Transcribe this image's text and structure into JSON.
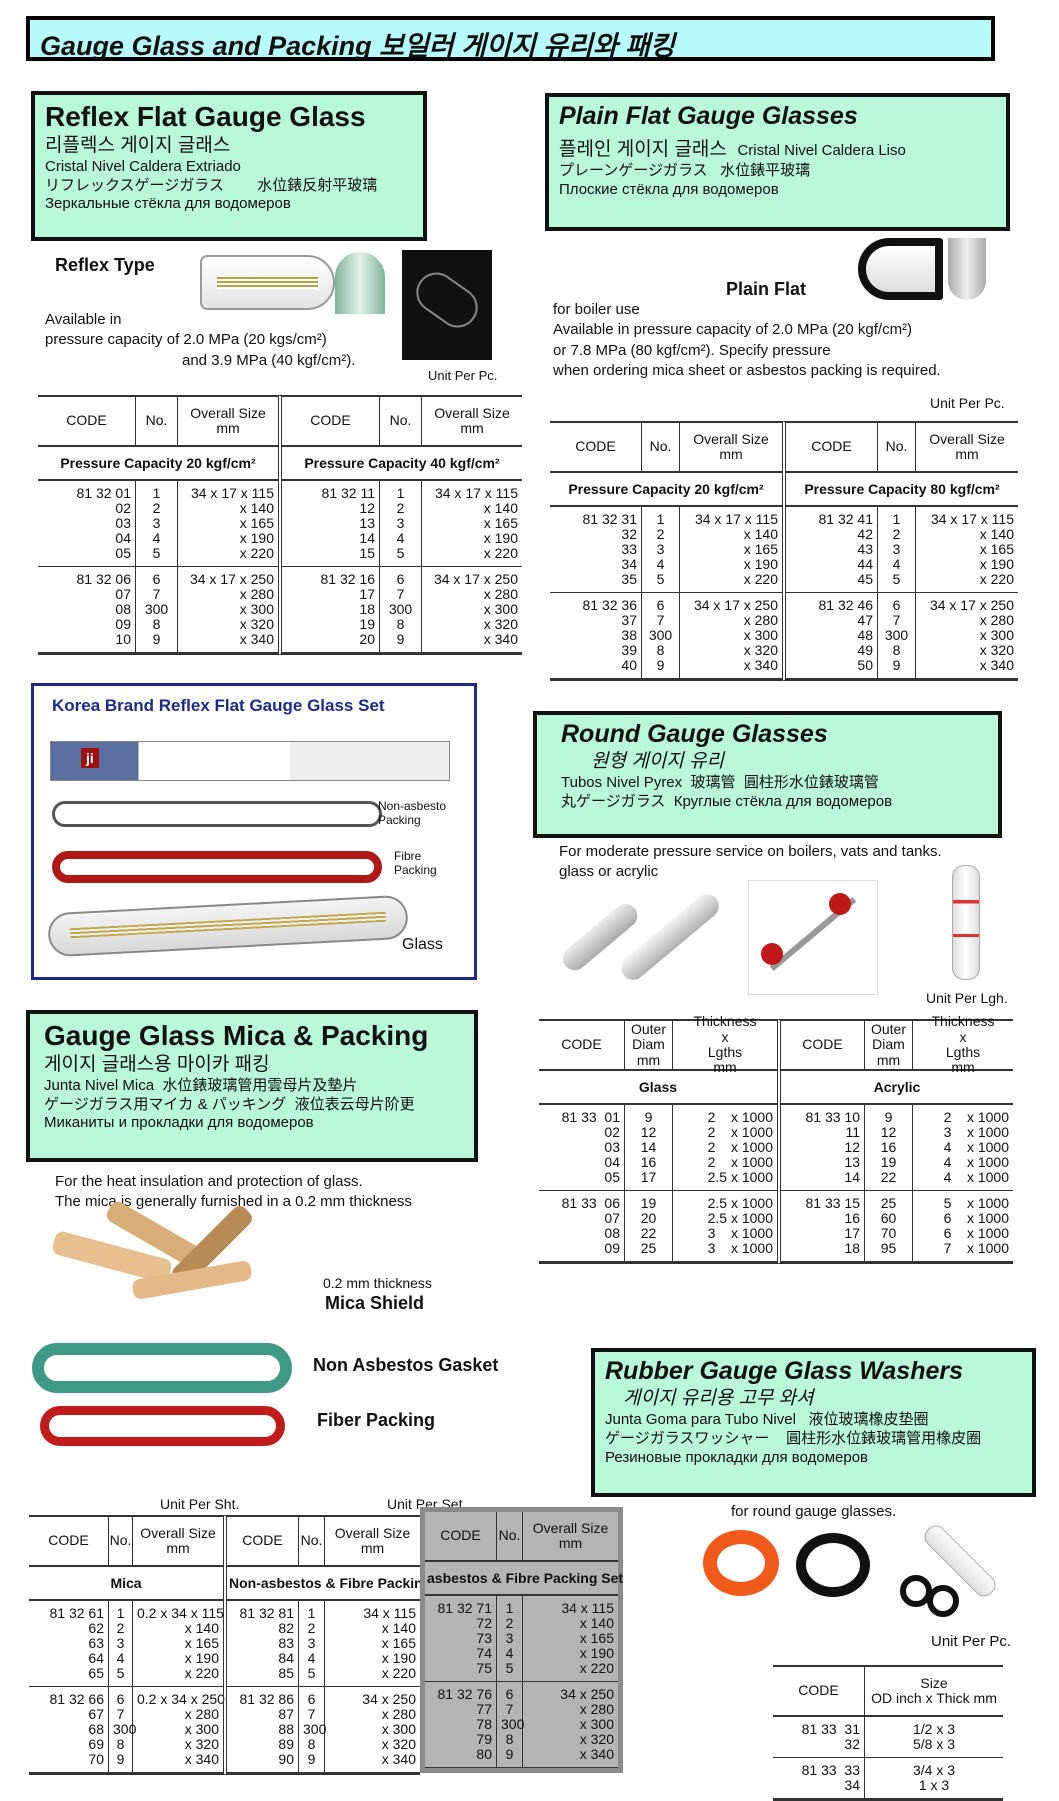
{
  "banner": {
    "title": "Gauge Glass and Packing  보일러 게이지 유리와 패킹"
  },
  "reflex": {
    "title": "Reflex Flat Gauge Glass",
    "korean": "리플렉스 게이지 글래스",
    "spanish": "Cristal Nivel Caldera Extriado",
    "japanese": "リフレックスゲージガラス",
    "chinese": "水位錶反射平玻璃",
    "russian": "Зеркальные стёкла для водомеров",
    "type_label": "Reflex Type",
    "desc": "Available  in\npressure capacity of 2.0 MPa  (20 kgs/cm²)",
    "desc2": "and 3.9 MPa (40 kgf/cm²).",
    "unit": "Unit Per Pc.",
    "table": [
      {
        "headers": [
          "CODE",
          "No.",
          "Overall Size\nmm"
        ],
        "subhead": "Pressure Capacity 20 kgf/cm²",
        "groups": [
          [
            [
              "81 32 01",
              "02",
              "03",
              "04",
              "05"
            ],
            [
              "1",
              "2",
              "3",
              "4",
              "5"
            ],
            [
              "34 x 17 x 115",
              "x 140",
              "x 165",
              "x 190",
              "x 220"
            ]
          ],
          [
            [
              "81 32 06",
              "07",
              "08",
              "09",
              "10"
            ],
            [
              "6",
              "7",
              "300",
              "8",
              "9"
            ],
            [
              "34 x 17 x 250",
              "x 280",
              "x 300",
              "x 320",
              "x 340"
            ]
          ]
        ]
      },
      {
        "headers": [
          "CODE",
          "No.",
          "Overall Size\nmm"
        ],
        "subhead": "Pressure Capacity 40 kgf/cm²",
        "groups": [
          [
            [
              "81 32 11",
              "12",
              "13",
              "14",
              "15"
            ],
            [
              "1",
              "2",
              "3",
              "4",
              "5"
            ],
            [
              "34 x 17 x 115",
              "x 140",
              "x 165",
              "x 190",
              "x 220"
            ]
          ],
          [
            [
              "81 32 16",
              "17",
              "18",
              "19",
              "20"
            ],
            [
              "6",
              "7",
              "300",
              "8",
              "9"
            ],
            [
              "34 x 17 x 250",
              "x 280",
              "x 300",
              "x 320",
              "x 340"
            ]
          ]
        ]
      }
    ]
  },
  "plain": {
    "title": "Plain Flat Gauge Glasses",
    "korean": "플레인 게이지 글래스",
    "spanish": "Cristal Nivel Caldera Liso",
    "japanese": "プレーンゲージガラス",
    "chinese": "水位錶平玻璃",
    "russian": "Плоские стёкла для водомеров",
    "type_label": "Plain Flat",
    "desc": "for boiler use\nAvailable in    pressure capacity  of 2.0 MPa (20  kgf/cm²)\n    or  7.8  MPa   (80 kgf/cm²). Specify pressure\n  when ordering  mica sheet  or asbestos packing is required.",
    "unit": "Unit Per Pc.",
    "table": [
      {
        "headers": [
          "CODE",
          "No.",
          "Overall Size\nmm"
        ],
        "subhead": "Pressure  Capacity 20 kgf/cm²",
        "groups": [
          [
            [
              "81 32 31",
              "32",
              "33",
              "34",
              "35"
            ],
            [
              "1",
              "2",
              "3",
              "4",
              "5"
            ],
            [
              "34 x 17 x 115",
              "x 140",
              "x 165",
              "x 190",
              "x 220"
            ]
          ],
          [
            [
              "81 32 36",
              "37",
              "38",
              "39",
              "40"
            ],
            [
              "6",
              "7",
              "300",
              "8",
              "9"
            ],
            [
              "34 x 17 x 250",
              "x 280",
              "x 300",
              "x 320",
              "x 340"
            ]
          ]
        ]
      },
      {
        "headers": [
          "CODE",
          "No.",
          "Overall Size\nmm"
        ],
        "subhead": "Pressure  Capacity 80 kgf/cm²",
        "groups": [
          [
            [
              "81 32 41",
              "42",
              "43",
              "44",
              "45"
            ],
            [
              "1",
              "2",
              "3",
              "4",
              "5"
            ],
            [
              "34 x 17 x 115",
              "x 140",
              "x 165",
              "x 190",
              "x 220"
            ]
          ],
          [
            [
              "81 32 46",
              "47",
              "48",
              "49",
              "50"
            ],
            [
              "6",
              "7",
              "300",
              "8",
              "9"
            ],
            [
              "34 x 17 x 250",
              "x 280",
              "x 300",
              "x 320",
              "x 340"
            ]
          ]
        ]
      }
    ]
  },
  "korea_set": {
    "title": "Korea Brand Reflex Flat Gauge Glass Set",
    "box_logo": "ji",
    "non_asbestos": "Non-asbesto\nPacking",
    "fibre": "Fibre\nPacking",
    "glass": "Glass"
  },
  "round": {
    "title": "Round Gauge Glasses",
    "korean": "원형 게이지 유리",
    "spanish": "Tubos Nivel Pyrex",
    "chinese1": "玻璃管",
    "chinese2": "圓柱形水位錶玻璃管",
    "japanese": "丸ゲージガラス",
    "russian": "Круглые стёкла для водомеров",
    "desc": "For  moderate pressure service on boilers, vats and tanks.\nglass  or  acrylic",
    "unit": "Unit Per Lgh.",
    "table": [
      {
        "headers": [
          "CODE",
          "Outer\nDiam\nmm",
          "Thickness\nx\nLgths\nmm"
        ],
        "subhead": "Glass",
        "groups": [
          [
            [
              "81 33  01",
              "02",
              "03",
              "04",
              "05"
            ],
            [
              "9",
              "12",
              "14",
              "16",
              "17"
            ],
            [
              "2    x 1000",
              "2    x 1000",
              "2    x 1000",
              "2    x 1000",
              "2.5 x 1000"
            ]
          ],
          [
            [
              "81 33  06",
              "07",
              "08",
              "09"
            ],
            [
              "19",
              "20",
              "22",
              "25"
            ],
            [
              "2.5 x 1000",
              "2.5 x 1000",
              "3    x 1000",
              "3    x 1000"
            ]
          ]
        ]
      },
      {
        "headers": [
          "CODE",
          "Outer\nDiam\nmm",
          "Thickness\nx\nLgths\nmm"
        ],
        "subhead": "Acrylic",
        "groups": [
          [
            [
              "81 33 10",
              "11",
              "12",
              "13",
              "14"
            ],
            [
              "9",
              "12",
              "16",
              "19",
              "22"
            ],
            [
              "2    x 1000",
              "3    x 1000",
              "4    x 1000",
              "4    x 1000",
              "4    x 1000"
            ]
          ],
          [
            [
              "81 33 15",
              "16",
              "17",
              "18"
            ],
            [
              "25",
              "60",
              "70",
              "95"
            ],
            [
              "5    x 1000",
              "6    x 1000",
              "6    x 1000",
              "7    x 1000"
            ]
          ]
        ]
      }
    ]
  },
  "mica": {
    "title": "Gauge Glass Mica & Packing",
    "korean": "게이지 글래스용 마이카 패킹",
    "spanish": "Junta Nivel Mica",
    "chinese": "水位錶玻璃管用雲母片及墊片",
    "japanese": "ゲージガラス用マイカ & パッキング",
    "chinese2": "液位表云母片阶更",
    "russian": "Миканиты и прокладки для водомеров",
    "desc": "For the heat insulation and protection of glass.\nThe mica is generally furnished in a  0.2 mm  thickness",
    "thickness": "0.2 mm  thickness",
    "shield": "Mica Shield",
    "gasket": "Non Asbestos Gasket",
    "fiber": "Fiber Packing",
    "unit_sheet": "Unit Per Sht.",
    "unit_set": "Unit Per Set",
    "table": [
      {
        "headers": [
          "CODE",
          "No.",
          "Overall Size\nmm"
        ],
        "subhead": "Mica",
        "groups": [
          [
            [
              "81 32 61",
              "62",
              "63",
              "64",
              "65"
            ],
            [
              "1",
              "2",
              "3",
              "4",
              "5"
            ],
            [
              "0.2 x 34 x 115",
              "x 140",
              "x 165",
              "x 190",
              "x 220"
            ]
          ],
          [
            [
              "81 32 66",
              "67",
              "68",
              "69",
              "70"
            ],
            [
              "6",
              "7",
              "300",
              "8",
              "9"
            ],
            [
              "0.2 x 34 x 250",
              "x 280",
              "x 300",
              "x 320",
              "x 340"
            ]
          ]
        ]
      },
      {
        "headers": [
          "CODE",
          "No.",
          "Overall Size\nmm"
        ],
        "subhead": "Non-asbestos & Fibre Packing Set",
        "groups": [
          [
            [
              "81 32 81",
              "82",
              "83",
              "84",
              "85"
            ],
            [
              "1",
              "2",
              "3",
              "4",
              "5"
            ],
            [
              "34 x 115",
              "x 140",
              "x 165",
              "x 190",
              "x 220"
            ]
          ],
          [
            [
              "81 32 86",
              "87",
              "88",
              "89",
              "90"
            ],
            [
              "6",
              "7",
              "300",
              "8",
              "9"
            ],
            [
              "34 x 250",
              "x 280",
              "x 300",
              "x 320",
              "x 340"
            ]
          ]
        ]
      },
      {
        "headers": [
          "CODE",
          "No.",
          "Overall Size\nmm"
        ],
        "subhead": "asbestos &  Fibre Packing Set",
        "groups": [
          [
            [
              "81 32 71",
              "72",
              "73",
              "74",
              "75"
            ],
            [
              "1",
              "2",
              "3",
              "4",
              "5"
            ],
            [
              "34 x 115",
              "x 140",
              "x 165",
              "x 190",
              "x 220"
            ]
          ],
          [
            [
              "81 32 76",
              "77",
              "78",
              "79",
              "80"
            ],
            [
              "6",
              "7",
              "300",
              "8",
              "9"
            ],
            [
              "34 x 250",
              "x 280",
              "x 300",
              "x 320",
              "x 340"
            ]
          ]
        ]
      }
    ]
  },
  "washers": {
    "title": "Rubber Gauge Glass Washers",
    "korean": "게이지 유리용 고무 와셔",
    "spanish": "Junta Goma para Tubo Nivel",
    "chinese": "液位玻璃橡皮垫圈",
    "japanese": "ゲージガラスワッシャー",
    "chinese2": "圓柱形水位錶玻璃管用橡皮圈",
    "russian": "Резиновые прокладки для водомеров",
    "desc": "for round gauge glasses.",
    "unit": "Unit Per Pc.",
    "table": {
      "headers": [
        "CODE",
        "Size\nOD inch x Thick mm"
      ],
      "groups": [
        [
          [
            "81 33  31",
            "32"
          ],
          [
            "1/2 x 3",
            "5/8 x 3"
          ]
        ],
        [
          [
            "81 33  33",
            "34"
          ],
          [
            "3/4 x 3",
            "1 x 3"
          ]
        ]
      ]
    }
  },
  "colors": {
    "banner_bg": "#b8fbfb",
    "box_bg": "#b9f8d8",
    "korea_border": "#1c2a8c",
    "grey_table": "#b4b4b4"
  }
}
